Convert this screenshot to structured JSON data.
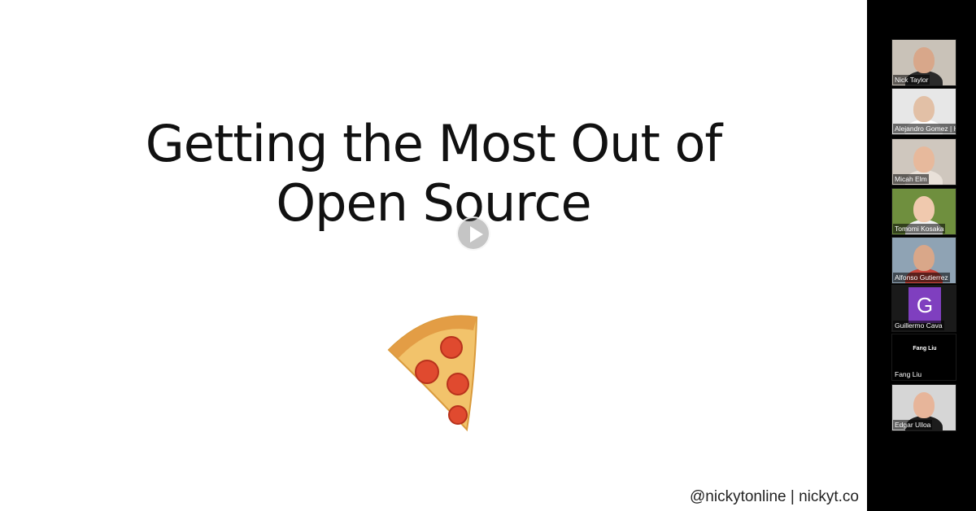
{
  "slide": {
    "title_line1": "Getting the Most Out of",
    "title_line2": "Open Source",
    "emoji": "pizza",
    "credit": "@nickytonline | nickyt.co"
  },
  "participants": [
    {
      "name": "Nick Taylor",
      "bg": "#c9c2b8",
      "skin": "#d8a78a",
      "shirt": "#2a2a2a"
    },
    {
      "name": "Alejandro Gomez | Host",
      "bg": "#e7e7e7",
      "skin": "#e2c0a6",
      "shirt": "#ffffff"
    },
    {
      "name": "Micah Elm",
      "bg": "#cfc7be",
      "skin": "#e7b99c",
      "shirt": "#e9e1d9"
    },
    {
      "name": "Tomomi Kosaka",
      "bg": "#6f8f3e",
      "skin": "#f0c9ae",
      "shirt": "#f2f2f2"
    },
    {
      "name": "Alfonso Gutierrez",
      "bg": "#8fa3b4",
      "skin": "#d9a789",
      "shirt": "#c8463c"
    },
    {
      "name": "Guillermo Cava",
      "avatar_letter": "G",
      "avatar_color": "#7f3fbf"
    },
    {
      "name": "Fang Liu",
      "label_center": "Fang Liu"
    },
    {
      "name": "Edgar Ulloa",
      "bg": "#d6d6d6",
      "skin": "#e7b59a",
      "shirt": "#1c1c1c"
    }
  ]
}
